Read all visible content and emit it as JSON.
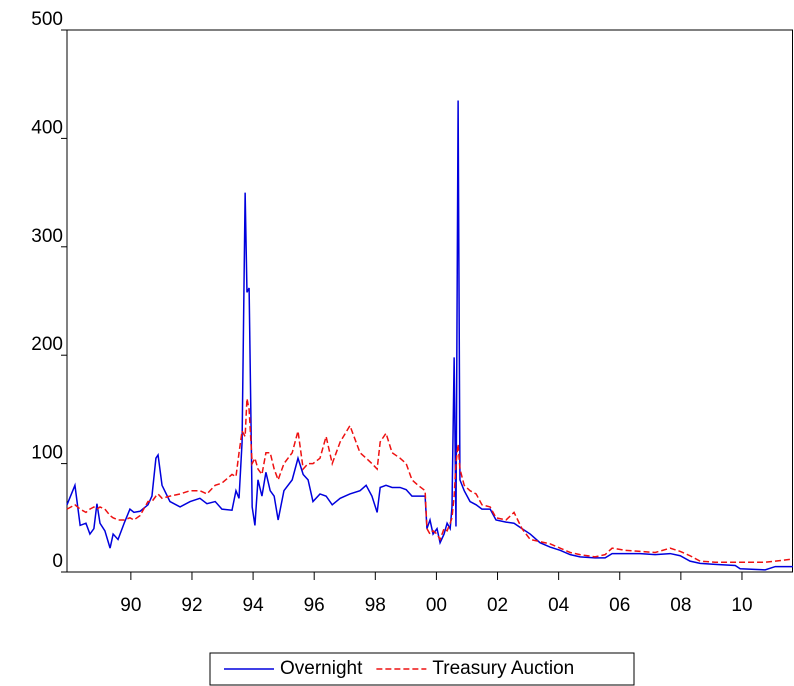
{
  "chart_data": {
    "type": "line",
    "x": [
      1988.41,
      1988.67,
      1988.84,
      1989.03,
      1989.16,
      1989.29,
      1989.39,
      1989.49,
      1989.65,
      1989.82,
      1989.92,
      1990.08,
      1990.28,
      1990.47,
      1990.6,
      1990.8,
      1991.06,
      1991.19,
      1991.32,
      1991.39,
      1991.52,
      1991.78,
      1992.11,
      1992.44,
      1992.76,
      1992.99,
      1993.26,
      1993.48,
      1993.81,
      1993.94,
      1994.04,
      1994.14,
      1994.24,
      1994.3,
      1994.37,
      1994.47,
      1994.56,
      1994.66,
      1994.79,
      1994.92,
      1995.06,
      1995.19,
      1995.32,
      1995.51,
      1995.78,
      1995.97,
      1996.14,
      1996.3,
      1996.46,
      1996.69,
      1996.89,
      1997.09,
      1997.35,
      1997.67,
      1998.0,
      1998.2,
      1998.39,
      1998.56,
      1998.66,
      1998.85,
      1999.05,
      1999.31,
      1999.51,
      1999.7,
      1999.9,
      2000.13,
      2000.19,
      2000.29,
      2000.39,
      2000.52,
      2000.62,
      2000.75,
      2000.85,
      2000.95,
      2001.01,
      2001.08,
      2001.14,
      2001.21,
      2001.27,
      2001.41,
      2001.6,
      2001.8,
      2001.99,
      2002.26,
      2002.45,
      2002.78,
      2003.04,
      2003.3,
      2003.57,
      2003.89,
      2004.22,
      2004.55,
      2004.88,
      2005.2,
      2005.69,
      2006.02,
      2006.25,
      2006.68,
      2007.17,
      2007.66,
      2008.15,
      2008.48,
      2008.8,
      2009.13,
      2009.62,
      2010.28,
      2010.44,
      2011.26,
      2011.59,
      2012.17
    ],
    "series": [
      {
        "name": "Overnight",
        "color": "#0000dd",
        "dash": "none",
        "values": [
          62,
          80,
          43,
          45,
          35,
          40,
          63,
          45,
          38,
          22,
          35,
          30,
          45,
          58,
          55,
          56,
          62,
          70,
          105,
          108,
          80,
          65,
          60,
          65,
          68,
          63,
          65,
          58,
          57,
          75,
          68,
          120,
          350,
          258,
          262,
          60,
          43,
          85,
          70,
          92,
          75,
          70,
          48,
          75,
          85,
          105,
          90,
          85,
          65,
          72,
          70,
          62,
          68,
          72,
          75,
          80,
          70,
          55,
          78,
          80,
          78,
          78,
          76,
          70,
          70,
          70,
          40,
          48,
          35,
          40,
          27,
          35,
          45,
          40,
          60,
          198,
          42,
          435,
          85,
          75,
          65,
          62,
          58,
          58,
          48,
          46,
          45,
          40,
          35,
          27,
          23,
          20,
          16,
          14,
          13,
          13,
          17,
          17,
          17,
          16,
          17,
          15,
          10,
          8,
          7,
          6,
          3,
          2,
          5,
          5
        ]
      },
      {
        "name": "Treasury Auction",
        "color": "#ee1111",
        "dash": "6 3",
        "values": [
          58,
          62,
          58,
          55,
          58,
          60,
          58,
          60,
          58,
          52,
          50,
          48,
          48,
          50,
          48,
          52,
          65,
          65,
          70,
          72,
          68,
          70,
          72,
          75,
          75,
          72,
          80,
          82,
          90,
          88,
          110,
          130,
          125,
          160,
          150,
          100,
          105,
          95,
          90,
          110,
          110,
          95,
          85,
          100,
          110,
          130,
          95,
          100,
          100,
          105,
          125,
          100,
          120,
          135,
          110,
          105,
          100,
          95,
          120,
          128,
          110,
          105,
          100,
          85,
          80,
          75,
          40,
          35,
          38,
          35,
          30,
          40,
          38,
          45,
          50,
          70,
          100,
          118,
          95,
          80,
          75,
          72,
          62,
          60,
          50,
          48,
          55,
          40,
          30,
          28,
          26,
          22,
          18,
          16,
          14,
          16,
          22,
          20,
          19,
          18,
          22,
          19,
          15,
          10,
          9,
          9,
          9,
          9,
          10,
          12
        ]
      }
    ],
    "xlim": [
      1988.41,
      2012.17
    ],
    "xticks": [
      {
        "value": 1990.5,
        "label": "90"
      },
      {
        "value": 1992.5,
        "label": "92"
      },
      {
        "value": 1994.5,
        "label": "94"
      },
      {
        "value": 1996.5,
        "label": "96"
      },
      {
        "value": 1998.5,
        "label": "98"
      },
      {
        "value": 2000.5,
        "label": "00"
      },
      {
        "value": 2002.5,
        "label": "02"
      },
      {
        "value": 2004.5,
        "label": "04"
      },
      {
        "value": 2006.5,
        "label": "06"
      },
      {
        "value": 2008.5,
        "label": "08"
      },
      {
        "value": 2010.5,
        "label": "10"
      }
    ],
    "ylim": [
      0,
      500
    ],
    "yticks": [
      0,
      100,
      200,
      300,
      400,
      500
    ],
    "legend": "bottom"
  }
}
